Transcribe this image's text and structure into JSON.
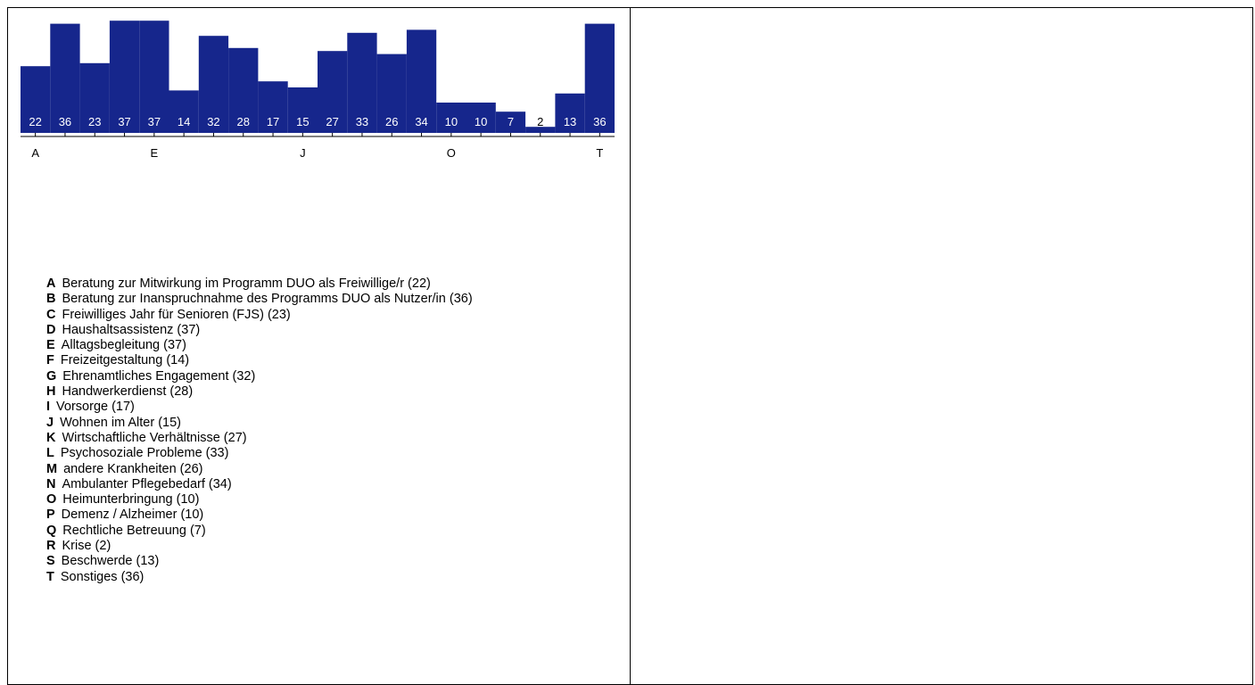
{
  "chart_data": {
    "type": "bar",
    "categories": [
      "A",
      "B",
      "C",
      "D",
      "E",
      "F",
      "G",
      "H",
      "I",
      "J",
      "K",
      "L",
      "M",
      "N",
      "O",
      "P",
      "Q",
      "R",
      "S",
      "T"
    ],
    "values": [
      22,
      36,
      23,
      37,
      37,
      14,
      32,
      28,
      17,
      15,
      27,
      33,
      26,
      34,
      10,
      10,
      7,
      2,
      13,
      36
    ],
    "axis_labels": [
      "A",
      "E",
      "J",
      "O",
      "T"
    ],
    "legend": [
      {
        "key": "A",
        "label": "Beratung zur Mitwirkung im Programm DUO als Freiwillige/r (22)"
      },
      {
        "key": "B",
        "label": "Beratung zur Inanspruchnahme des Programms DUO als Nutzer/in (36)"
      },
      {
        "key": "C",
        "label": "Freiwilliges Jahr für Senioren (FJS) (23)"
      },
      {
        "key": "D",
        "label": "Haushaltsassistenz (37)"
      },
      {
        "key": "E",
        "label": "Alltagsbegleitung (37)"
      },
      {
        "key": "F",
        "label": "Freizeitgestaltung (14)"
      },
      {
        "key": "G",
        "label": "Ehrenamtliches Engagement (32)"
      },
      {
        "key": "H",
        "label": "Handwerkerdienst (28)"
      },
      {
        "key": "I",
        "label": "Vorsorge (17)"
      },
      {
        "key": "J",
        "label": "Wohnen im Alter (15)"
      },
      {
        "key": "K",
        "label": "Wirtschaftliche Verhältnisse (27)"
      },
      {
        "key": "L",
        "label": "Psychosoziale Probleme (33)"
      },
      {
        "key": "M",
        "label": "andere Krankheiten (26)"
      },
      {
        "key": "N",
        "label": "Ambulanter Pflegebedarf (34)"
      },
      {
        "key": "O",
        "label": "Heimunterbringung (10)"
      },
      {
        "key": "P",
        "label": "Demenz / Alzheimer (10)"
      },
      {
        "key": "Q",
        "label": "Rechtliche Betreuung (7)"
      },
      {
        "key": "R",
        "label": "Krise (2)"
      },
      {
        "key": "S",
        "label": "Beschwerde (13)"
      },
      {
        "key": "T",
        "label": "Sonstiges (36)"
      }
    ],
    "bar_color": "#16268c",
    "label_color_inside": "#ffffff",
    "label_color_outside": "#000000",
    "grid": false
  }
}
